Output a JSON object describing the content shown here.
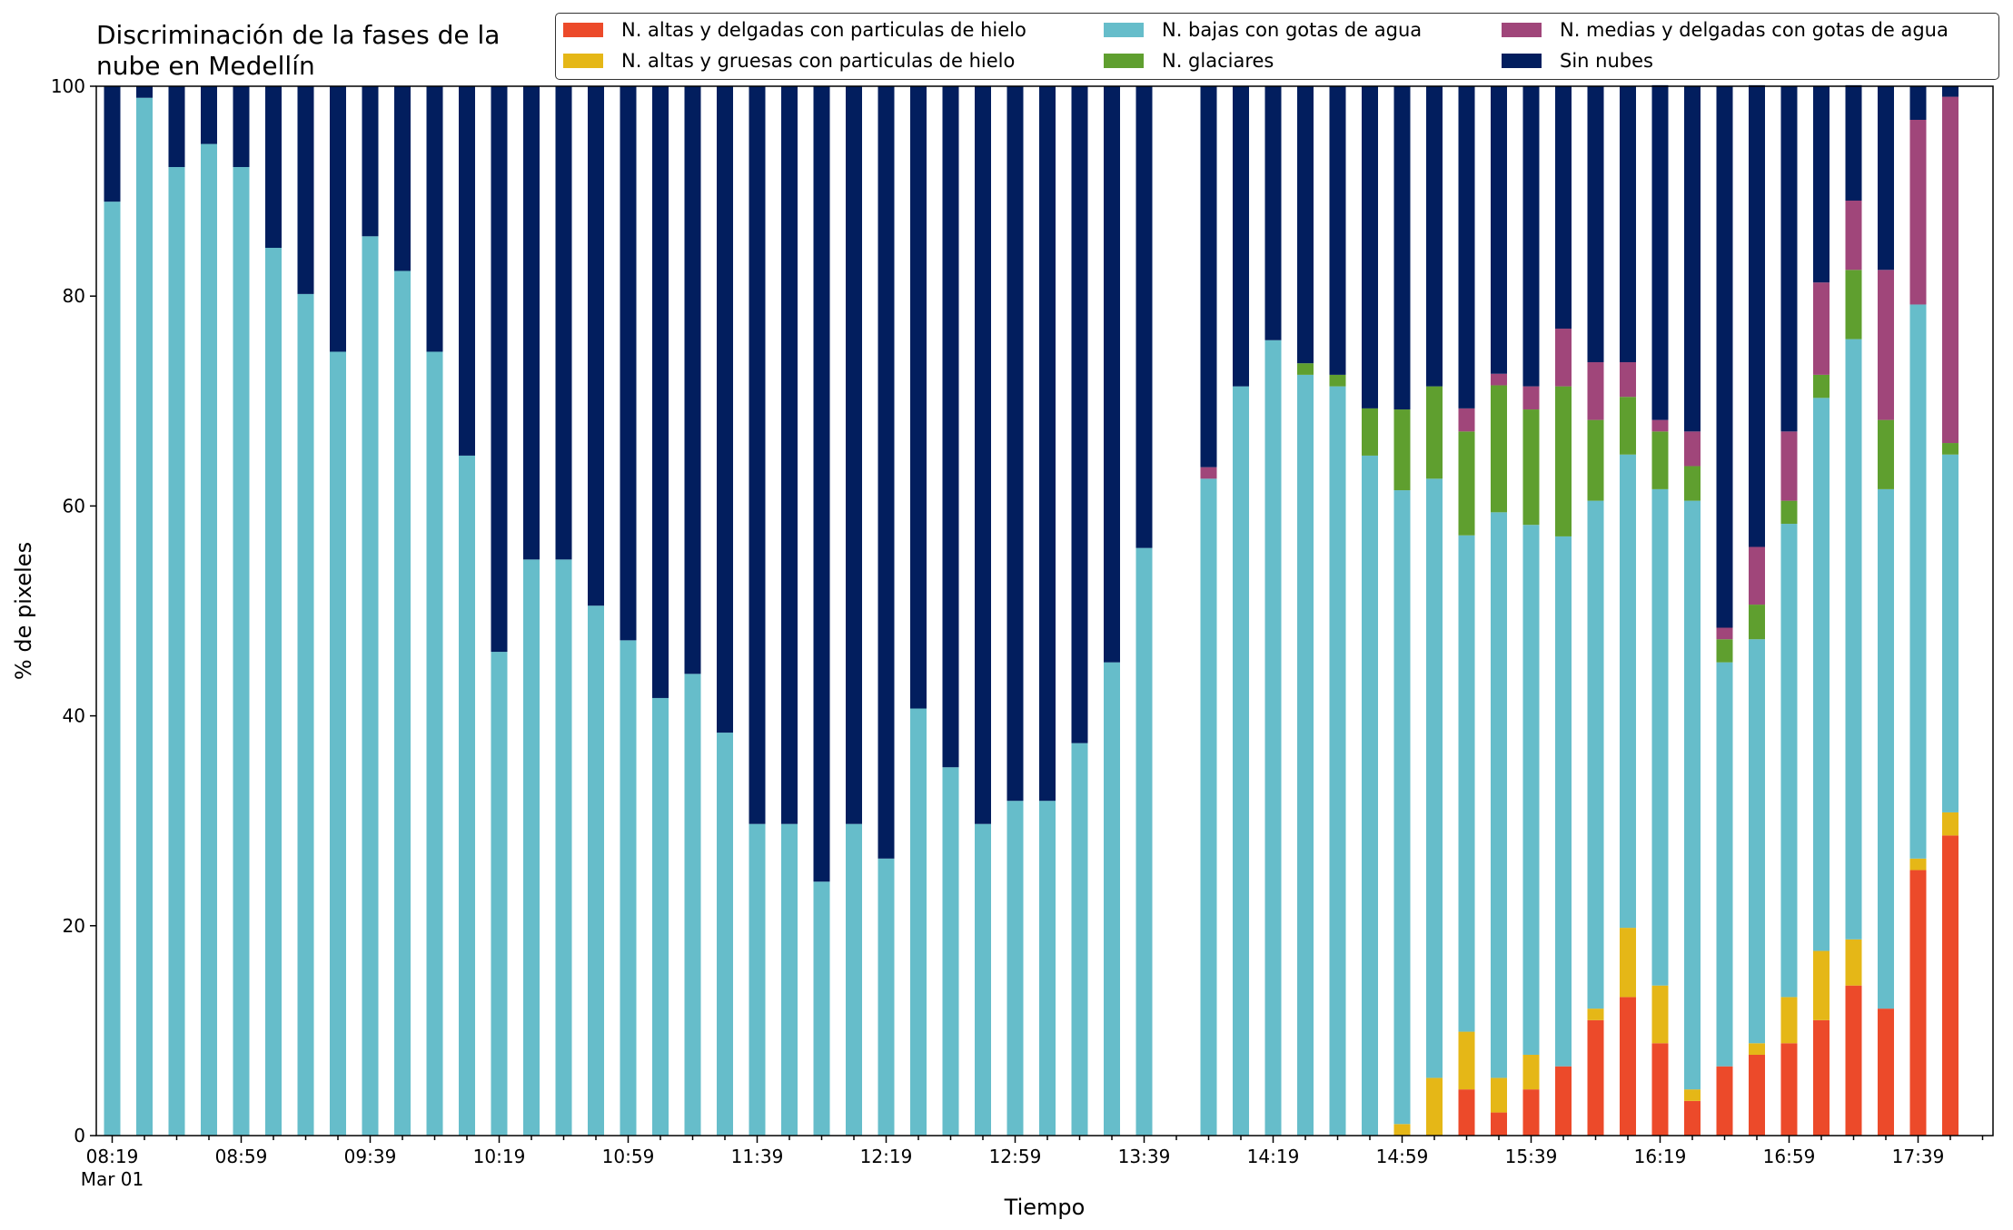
{
  "chart_data": {
    "type": "bar",
    "stacked": true,
    "title": "Discriminación de la fases de la\nnube en Medellín",
    "xlabel": "Tiempo",
    "ylabel": "% de pixeles",
    "ylim": [
      0,
      100
    ],
    "yticks": [
      0,
      20,
      40,
      60,
      80,
      100
    ],
    "grid": false,
    "legend_placement": "top-right",
    "time_start": "08:19",
    "time_step_minutes": 10,
    "x_date_label": "Mar 01",
    "x_tick_labels": [
      "08:19",
      "08:59",
      "09:39",
      "10:19",
      "10:59",
      "11:39",
      "12:19",
      "12:59",
      "13:39",
      "14:19",
      "14:59",
      "15:39",
      "16:19",
      "16:59",
      "17:39"
    ],
    "categories": [
      "08:19",
      "08:29",
      "08:39",
      "08:49",
      "08:59",
      "09:09",
      "09:19",
      "09:29",
      "09:39",
      "09:49",
      "09:59",
      "10:09",
      "10:19",
      "10:29",
      "10:39",
      "10:49",
      "10:59",
      "11:09",
      "11:19",
      "11:29",
      "11:39",
      "11:49",
      "11:59",
      "12:09",
      "12:19",
      "12:29",
      "12:39",
      "12:49",
      "12:59",
      "13:09",
      "13:19",
      "13:29",
      "13:39",
      "13:49",
      "13:59",
      "14:09",
      "14:19",
      "14:29",
      "14:39",
      "14:49",
      "14:59",
      "15:09",
      "15:19",
      "15:29",
      "15:39",
      "15:49",
      "15:59",
      "16:09",
      "16:19",
      "16:29",
      "16:39",
      "16:49",
      "16:59",
      "17:09",
      "17:19",
      "17:29",
      "17:39",
      "17:49"
    ],
    "series": [
      {
        "name": "N. altas y delgadas con particulas de hielo",
        "color": "#ec4a2a",
        "values": [
          0,
          0,
          0,
          0,
          0,
          0,
          0,
          0,
          0,
          0,
          0,
          0,
          0,
          0,
          0,
          0,
          0,
          0,
          0,
          0,
          0,
          0,
          0,
          0,
          0,
          0,
          0,
          0,
          0,
          0,
          0,
          0,
          0,
          0,
          0,
          0,
          0,
          0,
          0,
          0,
          0,
          0,
          4.4,
          2.2,
          4.4,
          6.6,
          11,
          13.2,
          8.8,
          3.3,
          6.6,
          7.7,
          8.8,
          11,
          14.3,
          12.1,
          25.3,
          28.6
        ]
      },
      {
        "name": "N. altas y gruesas con particulas de hielo",
        "color": "#e5b717",
        "values": [
          0,
          0,
          0,
          0,
          0,
          0,
          0,
          0,
          0,
          0,
          0,
          0,
          0,
          0,
          0,
          0,
          0,
          0,
          0,
          0,
          0,
          0,
          0,
          0,
          0,
          0,
          0,
          0,
          0,
          0,
          0,
          0,
          0,
          0,
          0,
          0,
          0,
          0,
          0,
          0,
          1.1,
          5.5,
          5.5,
          3.3,
          3.3,
          0,
          1.1,
          6.6,
          5.5,
          1.1,
          0,
          1.1,
          4.4,
          6.6,
          4.4,
          0,
          1.1,
          2.2
        ]
      },
      {
        "name": "N. bajas con gotas de agua",
        "color": "#66bdca",
        "values": [
          89,
          98.9,
          92.3,
          94.5,
          92.3,
          84.6,
          80.2,
          74.7,
          85.7,
          82.4,
          74.7,
          64.8,
          46.1,
          54.9,
          54.9,
          50.5,
          47.2,
          41.7,
          44,
          38.4,
          29.7,
          29.7,
          24.2,
          29.7,
          26.4,
          40.7,
          35.1,
          29.7,
          31.9,
          31.9,
          37.4,
          45.1,
          56,
          0,
          62.6,
          71.4,
          75.8,
          72.5,
          71.4,
          64.8,
          60.4,
          57.1,
          47.3,
          53.9,
          50.5,
          50.5,
          48.4,
          45.1,
          47.3,
          56.1,
          38.5,
          38.5,
          45.1,
          52.7,
          57.2,
          49.5,
          52.8,
          34.1
        ]
      },
      {
        "name": "N. glaciares",
        "color": "#5f9f2f",
        "values": [
          0,
          0,
          0,
          0,
          0,
          0,
          0,
          0,
          0,
          0,
          0,
          0,
          0,
          0,
          0,
          0,
          0,
          0,
          0,
          0,
          0,
          0,
          0,
          0,
          0,
          0,
          0,
          0,
          0,
          0,
          0,
          0,
          0,
          0,
          0,
          0,
          0,
          1.1,
          1.1,
          4.5,
          7.7,
          8.8,
          9.9,
          12.1,
          11,
          14.3,
          7.7,
          5.5,
          5.5,
          3.3,
          2.2,
          3.3,
          2.2,
          2.2,
          6.6,
          6.6,
          0,
          1.1
        ]
      },
      {
        "name": "N. medias y delgadas con gotas de agua",
        "color": "#a0467a",
        "values": [
          0,
          0,
          0,
          0,
          0,
          0,
          0,
          0,
          0,
          0,
          0,
          0,
          0,
          0,
          0,
          0,
          0,
          0,
          0,
          0,
          0,
          0,
          0,
          0,
          0,
          0,
          0,
          0,
          0,
          0,
          0,
          0,
          0,
          0,
          1.1,
          0,
          0,
          0,
          0,
          0,
          0,
          0,
          2.2,
          1.1,
          2.2,
          5.5,
          5.5,
          3.3,
          1.1,
          3.3,
          1.1,
          5.5,
          6.6,
          8.8,
          6.6,
          14.3,
          17.6,
          33
        ]
      },
      {
        "name": "Sin nubes",
        "color": "#021e5e",
        "values": [
          11,
          1.1,
          7.7,
          5.5,
          7.7,
          15.4,
          19.8,
          25.3,
          14.3,
          17.6,
          25.3,
          35.2,
          53.9,
          45.1,
          45.1,
          49.5,
          52.8,
          58.3,
          56,
          61.6,
          70.3,
          70.3,
          75.8,
          70.3,
          73.6,
          59.3,
          64.9,
          70.3,
          68.1,
          68.1,
          62.6,
          54.9,
          44,
          0,
          36.3,
          28.6,
          24.2,
          26.4,
          27.5,
          30.7,
          30.8,
          28.6,
          30.7,
          27.4,
          28.6,
          23.1,
          26.3,
          26.3,
          31.9,
          32.9,
          51.6,
          44,
          32.9,
          18.7,
          11,
          17.5,
          3.2,
          1
        ]
      }
    ]
  }
}
